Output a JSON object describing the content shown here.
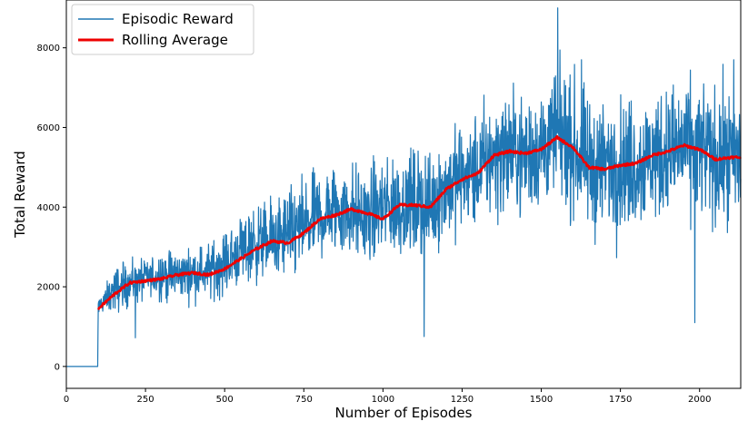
{
  "chart_data": {
    "type": "line",
    "xlabel": "Number of Episodes",
    "ylabel": "Total Reward",
    "xlim": [
      0,
      2130
    ],
    "ylim": [
      -550,
      9200
    ],
    "x_ticks": [
      0,
      250,
      500,
      750,
      1000,
      1250,
      1500,
      1750,
      2000
    ],
    "y_ticks": [
      0,
      2000,
      4000,
      6000,
      8000
    ],
    "grid": false,
    "legend_position": "top-left",
    "series": [
      {
        "name": "Episodic Reward",
        "color": "#1f77b4",
        "style": "noisy",
        "x": [
          0,
          100,
          101,
          150,
          200,
          250,
          300,
          350,
          400,
          450,
          500,
          550,
          600,
          650,
          700,
          750,
          800,
          850,
          900,
          950,
          1000,
          1050,
          1100,
          1150,
          1200,
          1250,
          1300,
          1350,
          1400,
          1450,
          1500,
          1550,
          1600,
          1650,
          1700,
          1750,
          1800,
          1850,
          1900,
          1950,
          2000,
          2050,
          2100,
          2130
        ],
        "center": [
          0,
          0,
          1500,
          1900,
          2100,
          2200,
          2300,
          2300,
          2350,
          2400,
          2600,
          2900,
          3100,
          3150,
          3300,
          3500,
          3750,
          3950,
          3900,
          3750,
          4000,
          4050,
          4100,
          4050,
          4500,
          4750,
          4900,
          5300,
          5400,
          5300,
          5500,
          5750,
          5500,
          5000,
          5000,
          5100,
          5100,
          5250,
          5350,
          5500,
          5450,
          5200,
          5250,
          5250
        ],
        "spread": [
          0,
          0,
          400,
          1100,
          1100,
          1100,
          1200,
          1200,
          1200,
          1300,
          1500,
          1700,
          1900,
          2000,
          2100,
          2200,
          2300,
          2300,
          2300,
          2300,
          2400,
          2500,
          2500,
          2600,
          2600,
          2700,
          2800,
          2900,
          3000,
          3000,
          3100,
          3200,
          3200,
          3200,
          3200,
          3200,
          3200,
          3200,
          3200,
          3200,
          3300,
          3300,
          3300,
          3300
        ],
        "highlights": [
          {
            "x": 1552,
            "y": 9000
          },
          {
            "x": 1627,
            "y": 7700
          },
          {
            "x": 1130,
            "y": 750
          },
          {
            "x": 1985,
            "y": 1100
          },
          {
            "x": 2108,
            "y": 7700
          },
          {
            "x": 218,
            "y": 720
          }
        ]
      },
      {
        "name": "Rolling Average",
        "color": "#ee0000",
        "x": [
          100,
          101,
          150,
          200,
          250,
          300,
          350,
          400,
          450,
          500,
          550,
          600,
          650,
          700,
          750,
          800,
          850,
          900,
          950,
          1000,
          1050,
          1100,
          1150,
          1200,
          1250,
          1300,
          1350,
          1400,
          1450,
          1500,
          1550,
          1600,
          1650,
          1700,
          1750,
          1800,
          1850,
          1900,
          1950,
          2000,
          2050,
          2100,
          2130
        ],
        "y": [
          1400,
          1450,
          1800,
          2100,
          2150,
          2200,
          2300,
          2350,
          2300,
          2450,
          2700,
          2950,
          3150,
          3100,
          3350,
          3700,
          3800,
          3950,
          3850,
          3700,
          4050,
          4050,
          4000,
          4450,
          4700,
          4850,
          5300,
          5400,
          5350,
          5450,
          5750,
          5500,
          5000,
          4950,
          5050,
          5100,
          5300,
          5400,
          5550,
          5450,
          5200,
          5250,
          5250
        ]
      }
    ]
  }
}
